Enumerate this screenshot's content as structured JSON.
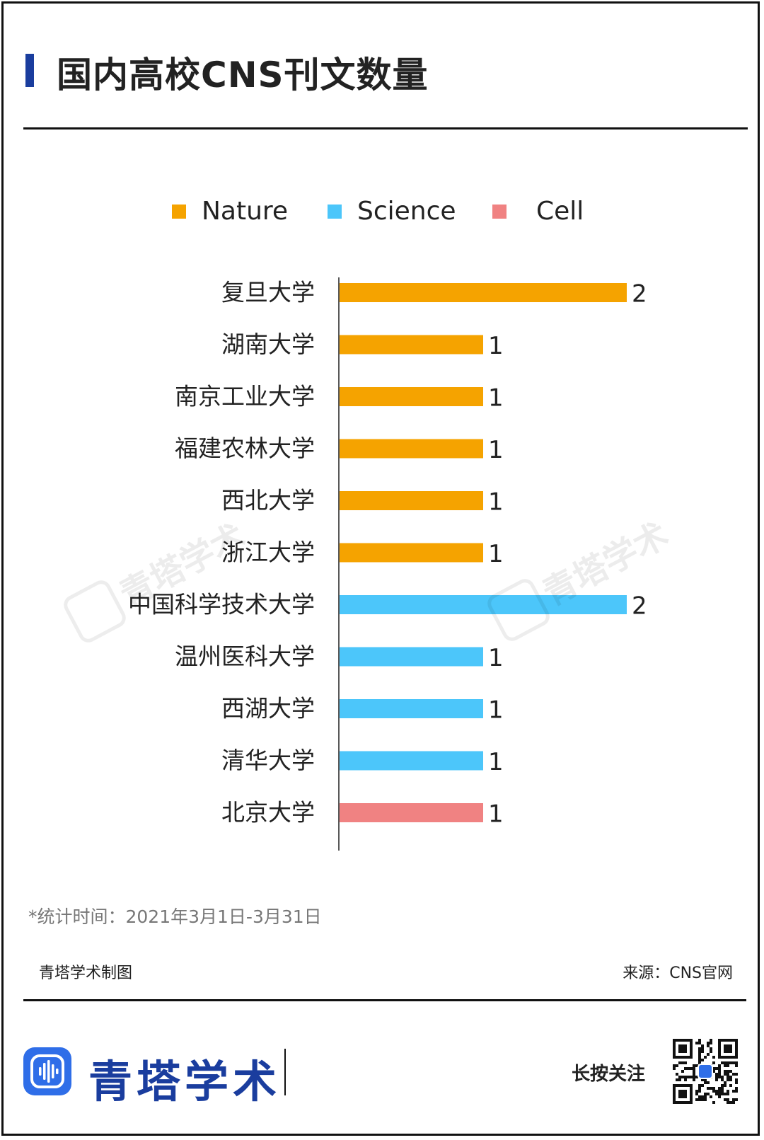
{
  "header": {
    "title": "国内高校CNS刊文数量",
    "accent_color": "#1a3d9e"
  },
  "legend": [
    {
      "label": "Nature",
      "color": "#f5a300"
    },
    {
      "label": "Science",
      "color": "#4cc6fa"
    },
    {
      "label": "Cell",
      "color": "#f08282"
    }
  ],
  "chart_data": {
    "type": "bar",
    "orientation": "horizontal",
    "categories": [
      "复旦大学",
      "湖南大学",
      "南京工业大学",
      "福建农林大学",
      "西北大学",
      "浙江大学",
      "中国科学技术大学",
      "温州医科大学",
      "西湖大学",
      "清华大学",
      "北京大学"
    ],
    "values": [
      2,
      1,
      1,
      1,
      1,
      1,
      2,
      1,
      1,
      1,
      1
    ],
    "series_of_bar": [
      "Nature",
      "Nature",
      "Nature",
      "Nature",
      "Nature",
      "Nature",
      "Science",
      "Science",
      "Science",
      "Science",
      "Cell"
    ],
    "series": [
      {
        "name": "Nature",
        "values": [
          2,
          1,
          1,
          1,
          1,
          1,
          0,
          0,
          0,
          0,
          0
        ]
      },
      {
        "name": "Science",
        "values": [
          0,
          0,
          0,
          0,
          0,
          0,
          2,
          1,
          1,
          1,
          0
        ]
      },
      {
        "name": "Cell",
        "values": [
          0,
          0,
          0,
          0,
          0,
          0,
          0,
          0,
          0,
          0,
          1
        ]
      }
    ],
    "xlim": [
      0,
      2
    ],
    "grid": false,
    "data_labels": true,
    "legend_position": "top-center",
    "value_labels": [
      "2",
      "1",
      "1",
      "1",
      "1",
      "1",
      "2",
      "1",
      "1",
      "1",
      "1"
    ]
  },
  "footer": {
    "note": "*统计时间：2021年3月1日-3月31日",
    "maker": "青塔学术制图",
    "source": "来源：CNS官网",
    "brand": "青塔学术",
    "cta": "长按关注",
    "qr_icon": "qr-code-icon",
    "logo_icon": "sound-wave-logo-icon"
  },
  "watermark": {
    "text": "青塔学术"
  }
}
